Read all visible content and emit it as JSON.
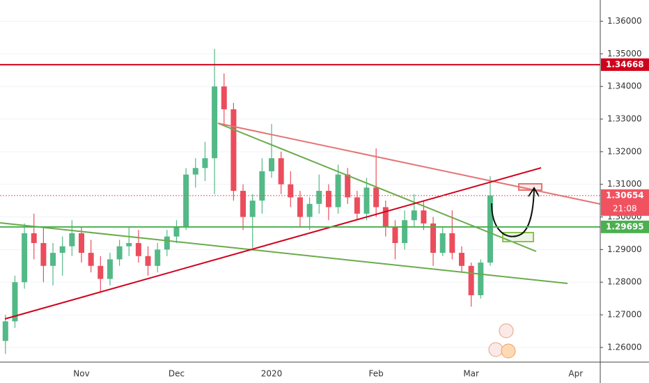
{
  "chart_data": {
    "type": "candlestick",
    "categories": [
      null,
      null,
      null,
      null,
      null,
      null,
      null,
      null,
      "Nov",
      null,
      null,
      null,
      null,
      null,
      null,
      null,
      null,
      null,
      "Dec",
      null,
      null,
      null,
      null,
      null,
      null,
      null,
      null,
      null,
      "2020",
      null,
      null,
      null,
      null,
      null,
      null,
      null,
      null,
      null,
      null,
      "Feb",
      null,
      null,
      null,
      null,
      null,
      null,
      null,
      null,
      null,
      "Mar",
      null,
      null,
      null,
      null,
      null,
      null,
      null,
      null,
      null,
      null,
      "Apr",
      null,
      null
    ],
    "open": [
      1.262,
      1.268,
      1.28,
      1.295,
      1.292,
      1.285,
      1.289,
      1.291,
      1.295,
      1.289,
      1.285,
      1.281,
      1.287,
      1.291,
      1.292,
      1.288,
      1.285,
      1.29,
      1.294,
      1.297,
      1.313,
      1.315,
      1.318,
      1.34,
      1.333,
      1.308,
      1.3,
      1.305,
      1.314,
      1.318,
      1.31,
      1.306,
      1.3,
      1.304,
      1.308,
      1.303,
      1.313,
      1.306,
      1.301,
      1.309,
      1.303,
      1.297,
      1.292,
      1.299,
      1.302,
      1.298,
      1.289,
      1.295,
      1.289,
      1.285,
      1.276,
      1.286,
      null,
      null,
      null,
      null,
      null,
      null,
      null,
      null,
      null,
      null,
      null
    ],
    "high": [
      1.27,
      1.282,
      1.298,
      1.301,
      1.297,
      1.292,
      1.294,
      1.299,
      1.297,
      1.293,
      1.288,
      1.289,
      1.293,
      1.297,
      1.296,
      1.291,
      1.292,
      1.296,
      1.299,
      1.315,
      1.318,
      1.323,
      1.3515,
      1.344,
      1.335,
      1.31,
      1.307,
      1.318,
      1.3285,
      1.32,
      1.314,
      1.308,
      1.306,
      1.313,
      1.31,
      1.316,
      1.315,
      1.308,
      1.312,
      1.321,
      1.305,
      1.299,
      1.302,
      1.307,
      1.305,
      1.3,
      1.297,
      1.302,
      1.291,
      1.286,
      1.287,
      1.3125,
      null,
      null,
      null,
      null,
      null,
      null,
      null,
      null,
      null,
      null,
      null
    ],
    "low": [
      1.258,
      1.266,
      1.278,
      1.287,
      1.28,
      1.279,
      1.282,
      1.288,
      1.286,
      1.283,
      1.277,
      1.279,
      1.285,
      1.288,
      1.286,
      1.282,
      1.283,
      1.288,
      1.292,
      1.296,
      1.309,
      1.311,
      1.307,
      1.328,
      1.305,
      1.296,
      1.2905,
      1.301,
      1.312,
      1.307,
      1.303,
      1.297,
      1.296,
      1.301,
      1.299,
      1.301,
      1.304,
      1.299,
      1.299,
      1.3,
      1.294,
      1.287,
      1.29,
      1.297,
      1.296,
      1.285,
      1.288,
      1.287,
      1.283,
      1.2725,
      1.275,
      1.285,
      null,
      null,
      null,
      null,
      null,
      null,
      null,
      null,
      null,
      null,
      null
    ],
    "close": [
      1.268,
      1.28,
      1.295,
      1.292,
      1.285,
      1.289,
      1.291,
      1.295,
      1.289,
      1.285,
      1.281,
      1.287,
      1.291,
      1.292,
      1.288,
      1.285,
      1.29,
      1.294,
      1.297,
      1.313,
      1.315,
      1.318,
      1.34,
      1.333,
      1.308,
      1.3,
      1.305,
      1.314,
      1.318,
      1.31,
      1.306,
      1.3,
      1.304,
      1.308,
      1.303,
      1.313,
      1.306,
      1.301,
      1.309,
      1.303,
      1.297,
      1.292,
      1.299,
      1.302,
      1.298,
      1.289,
      1.295,
      1.289,
      1.285,
      1.276,
      1.286,
      1.30654,
      null,
      null,
      null,
      null,
      null,
      null,
      null,
      null,
      null,
      null,
      null
    ],
    "up_color": "#53b987",
    "down_color": "#eb4d5c",
    "ylim": [
      1.2555,
      1.3665
    ],
    "yticks": [
      {
        "value": 1.26,
        "label": "1.26000"
      },
      {
        "value": 1.27,
        "label": "1.27000"
      },
      {
        "value": 1.28,
        "label": "1.28000"
      },
      {
        "value": 1.29,
        "label": "1.29000"
      },
      {
        "value": 1.3,
        "label": "1.30000"
      },
      {
        "value": 1.31,
        "label": "1.31000"
      },
      {
        "value": 1.32,
        "label": "1.32000"
      },
      {
        "value": 1.33,
        "label": "1.33000"
      },
      {
        "value": 1.34,
        "label": "1.34000"
      },
      {
        "value": 1.35,
        "label": "1.35000"
      },
      {
        "value": 1.36,
        "label": "1.36000"
      }
    ],
    "levels": [
      {
        "value": 1.34668,
        "color": "#d0021b"
      },
      {
        "value": 1.29695,
        "color": "#4caf50"
      }
    ],
    "last_price_color": "#f0525f",
    "countdown": "21:08",
    "grid": true
  }
}
